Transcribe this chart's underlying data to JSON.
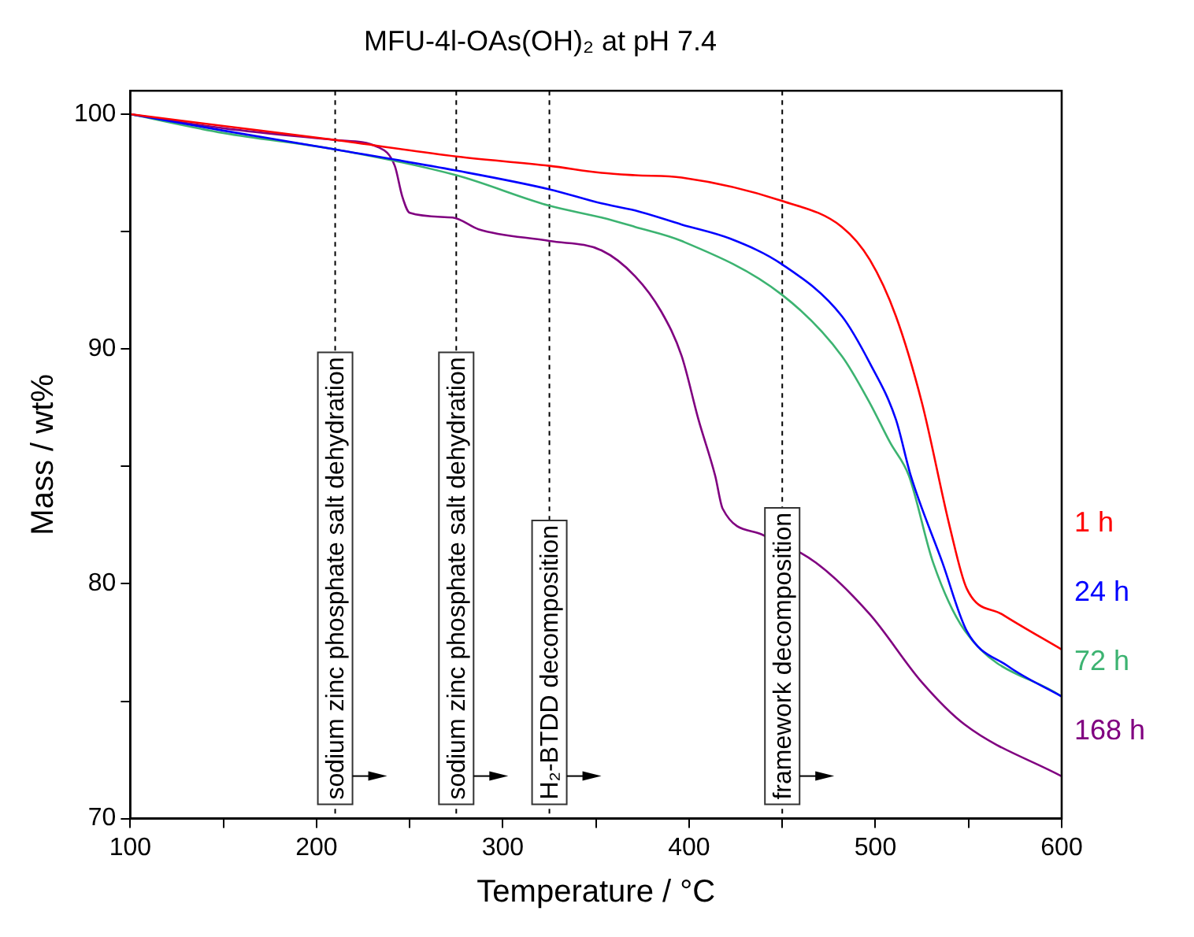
{
  "chart_data": {
    "type": "line",
    "title": "MFU-4l-OAs(OH)₂ at pH 7.4",
    "xlabel": "Temperature / °C",
    "ylabel": "Mass / wt%",
    "xlim": [
      100,
      600
    ],
    "xticks": [
      100,
      {
        "value": 150,
        "label": null
      },
      200,
      {
        "value": 250,
        "label": null
      },
      300,
      {
        "value": 350,
        "label": null
      },
      400,
      {
        "value": 450,
        "label": null
      },
      500,
      {
        "value": 550,
        "label": null
      },
      600
    ],
    "ylim": [
      70,
      101
    ],
    "yticks": [
      70,
      {
        "value": 75,
        "label": null
      },
      80,
      {
        "value": 85,
        "label": null
      },
      90,
      {
        "value": 95,
        "label": null
      },
      100
    ],
    "grid": false,
    "legend": false,
    "marker": "none",
    "line_style": "solid",
    "ref_lines": [
      {
        "axis": "x",
        "value": 210,
        "label": "sodium zinc phosphate salt dehydration",
        "color": "#000000",
        "line_style": "dashed"
      },
      {
        "axis": "x",
        "value": 275,
        "label": "sodium zinc phosphate salt dehydration",
        "color": "#000000",
        "line_style": "dashed"
      },
      {
        "axis": "x",
        "value": 325,
        "label": "H₂-BTDD decomposition",
        "color": "#000000",
        "line_style": "dashed"
      },
      {
        "axis": "x",
        "value": 450,
        "label": "framework decomposition",
        "color": "#000000",
        "line_style": "dashed"
      }
    ],
    "series": [
      {
        "name": "1 h",
        "color": "#ff0000",
        "x": [
          100,
          150,
          210,
          275,
          325,
          353,
          371,
          396,
          450,
          482,
          497,
          511,
          525,
          540,
          549,
          568,
          600
        ],
        "values": [
          100,
          99.5,
          98.9,
          98.2,
          97.8,
          97.5,
          97.4,
          97.3,
          96.3,
          95.2,
          93.8,
          91.4,
          87.7,
          82.4,
          79.8,
          78.7,
          77.2
        ]
      },
      {
        "name": "24 h",
        "color": "#0000ff",
        "x": [
          100,
          150,
          210,
          275,
          325,
          353,
          371,
          396,
          422,
          450,
          482,
          497,
          511,
          519,
          536,
          549,
          571,
          600
        ],
        "values": [
          100,
          99.3,
          98.5,
          97.6,
          96.8,
          96.2,
          95.9,
          95.3,
          94.7,
          93.6,
          91.4,
          89.4,
          87.0,
          84.6,
          80.9,
          78.0,
          76.5,
          75.2
        ]
      },
      {
        "name": "72 h",
        "color": "#3cb371",
        "x": [
          100,
          150,
          210,
          275,
          325,
          353,
          371,
          396,
          450,
          482,
          497,
          508,
          518,
          531,
          548,
          600
        ],
        "values": [
          100,
          99.2,
          98.5,
          97.4,
          96.1,
          95.6,
          95.2,
          94.6,
          92.3,
          89.7,
          87.7,
          86.0,
          84.6,
          80.9,
          78.0,
          75.2
        ]
      },
      {
        "name": "168 h",
        "color": "#800080",
        "x": [
          100,
          150,
          210,
          233,
          242,
          246,
          250,
          273,
          287,
          325,
          353,
          371,
          385,
          396,
          405,
          414,
          418,
          439,
          468,
          497,
          525,
          548,
          600
        ],
        "values": [
          100,
          99.4,
          98.9,
          98.6,
          97.8,
          96.5,
          95.8,
          95.6,
          95.1,
          94.6,
          94.2,
          93.1,
          91.6,
          89.7,
          87.0,
          84.6,
          83.2,
          82.1,
          80.9,
          78.7,
          75.8,
          74.0,
          71.8
        ]
      }
    ]
  }
}
